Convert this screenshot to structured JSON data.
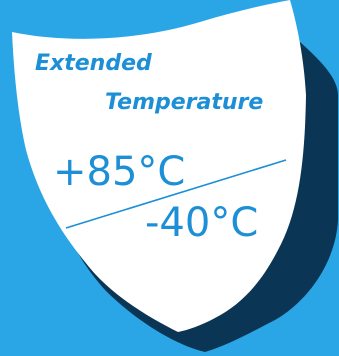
{
  "badge": {
    "title_line1": "Extended",
    "title_line2": "Temperature",
    "temp_high": "+85°C",
    "temp_low": "-40°C"
  },
  "colors": {
    "background": "#2aa6e6",
    "shield_face": "#ffffff",
    "shield_shadow": "#0b3555",
    "accent_text": "#1c8fd6"
  }
}
